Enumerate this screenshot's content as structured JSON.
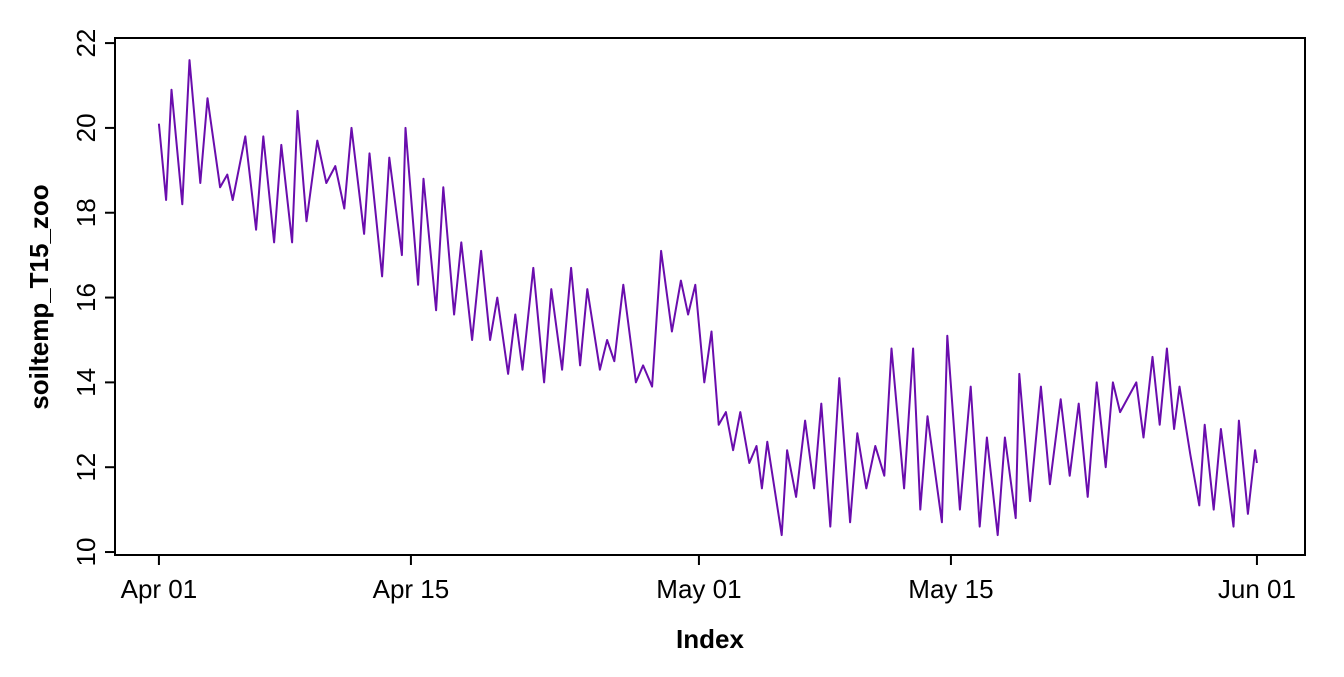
{
  "chart_data": {
    "type": "line",
    "xlabel": "Index",
    "ylabel": "soiltemp_T15_zoo",
    "color": "#6a0dad",
    "xlim": [
      -2.44,
      63.67
    ],
    "ylim": [
      9.93,
      22.12
    ],
    "xticks": [
      {
        "value": 0,
        "label": "Apr 01"
      },
      {
        "value": 14,
        "label": "Apr 15"
      },
      {
        "value": 30,
        "label": "May 01"
      },
      {
        "value": 44,
        "label": "May 15"
      },
      {
        "value": 61,
        "label": "Jun 01"
      }
    ],
    "yticks": [
      10,
      12,
      14,
      16,
      18,
      20,
      22
    ],
    "x": [
      0,
      0.4,
      0.7,
      1.3,
      1.7,
      2.3,
      2.7,
      3.4,
      3.8,
      4.1,
      4.8,
      5.4,
      5.8,
      6.4,
      6.8,
      7.4,
      7.7,
      8.2,
      8.8,
      9.3,
      9.8,
      10.3,
      10.7,
      11.4,
      11.7,
      12.4,
      12.8,
      13.5,
      13.7,
      14.4,
      14.7,
      15.4,
      15.8,
      16.4,
      16.8,
      17.4,
      17.9,
      18.4,
      18.8,
      19.4,
      19.8,
      20.2,
      20.8,
      21.4,
      21.8,
      22.4,
      22.9,
      23.4,
      23.8,
      24.5,
      24.9,
      25.3,
      25.8,
      26.5,
      26.9,
      27.4,
      27.9,
      28.5,
      29.0,
      29.4,
      29.8,
      30.3,
      30.7,
      31.1,
      31.5,
      31.9,
      32.3,
      32.8,
      33.2,
      33.5,
      33.8,
      34.6,
      34.9,
      35.4,
      35.9,
      36.4,
      36.8,
      37.3,
      37.8,
      38.4,
      38.8,
      39.3,
      39.8,
      40.3,
      40.7,
      41.4,
      41.9,
      42.3,
      42.7,
      43.5,
      43.8,
      44.5,
      45.1,
      45.6,
      46.0,
      46.6,
      47.0,
      47.6,
      47.8,
      48.4,
      49.0,
      49.5,
      50.1,
      50.6,
      51.1,
      51.6,
      52.1,
      52.6,
      53.0,
      53.4,
      54.3,
      54.7,
      55.2,
      55.6,
      56.0,
      56.4,
      56.7,
      57.3,
      57.8,
      58.1,
      58.6,
      59.0,
      59.7,
      60.0,
      60.5,
      60.9,
      61.0
    ],
    "values": [
      20.1,
      18.3,
      20.9,
      18.2,
      21.6,
      18.7,
      20.7,
      18.6,
      18.9,
      18.3,
      19.8,
      17.6,
      19.8,
      17.3,
      19.6,
      17.3,
      20.4,
      17.8,
      19.7,
      18.7,
      19.1,
      18.1,
      20.0,
      17.5,
      19.4,
      16.5,
      19.3,
      17.0,
      20.0,
      16.3,
      18.8,
      15.7,
      18.6,
      15.6,
      17.3,
      15.0,
      17.1,
      15.0,
      16.0,
      14.2,
      15.6,
      14.3,
      16.7,
      14.0,
      16.2,
      14.3,
      16.7,
      14.4,
      16.2,
      14.3,
      15.0,
      14.5,
      16.3,
      14.0,
      14.4,
      13.9,
      17.1,
      15.2,
      16.4,
      15.6,
      16.3,
      14.0,
      15.2,
      13.0,
      13.3,
      12.4,
      13.3,
      12.1,
      12.5,
      11.5,
      12.6,
      10.4,
      12.4,
      11.3,
      13.1,
      11.5,
      13.5,
      10.6,
      14.1,
      10.7,
      12.8,
      11.5,
      12.5,
      11.8,
      14.8,
      11.5,
      14.8,
      11.0,
      13.2,
      10.7,
      15.1,
      11.0,
      13.9,
      10.6,
      12.7,
      10.4,
      12.7,
      10.8,
      14.2,
      11.2,
      13.9,
      11.6,
      13.6,
      11.8,
      13.5,
      11.3,
      14.0,
      12.0,
      14.0,
      13.3,
      14.0,
      12.7,
      14.6,
      13.0,
      14.8,
      12.9,
      13.9,
      12.3,
      11.1,
      13.0,
      11.0,
      12.9,
      10.6,
      13.1,
      10.9,
      12.4,
      12.1
    ]
  }
}
